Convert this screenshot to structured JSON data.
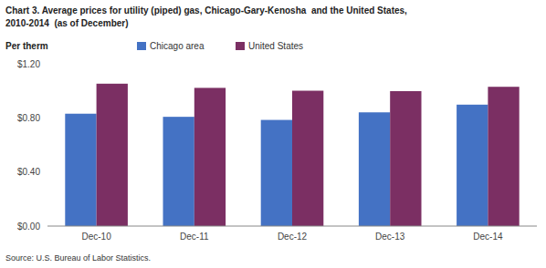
{
  "chart_data": {
    "type": "bar",
    "title": "Chart 3. Average prices for utility (piped) gas, Chicago-Gary-Kenosha  and the United States,",
    "subtitle": "2010-2014  (as of December)",
    "ylabel": "Per therm",
    "annotations": [
      "Source: U.S. Bureau of Labor Statistics."
    ],
    "categories": [
      "Dec-10",
      "Dec-11",
      "Dec-12",
      "Dec-13",
      "Dec-14"
    ],
    "series": [
      {
        "name": "Chicago area",
        "color": "#4472C4",
        "values": [
          0.831,
          0.808,
          0.785,
          0.841,
          0.898
        ]
      },
      {
        "name": "United States",
        "color": "#7B2F63",
        "values": [
          1.053,
          1.022,
          1.001,
          0.998,
          1.03
        ]
      }
    ],
    "ylim": [
      0,
      1.2
    ],
    "yticks": [
      {
        "value": 0.0,
        "label": "$0.00"
      },
      {
        "value": 0.4,
        "label": "$0.40"
      },
      {
        "value": 0.8,
        "label": "$0.80"
      },
      {
        "value": 1.2,
        "label": "$1.20"
      }
    ],
    "grid": false,
    "legend": "upper left"
  }
}
